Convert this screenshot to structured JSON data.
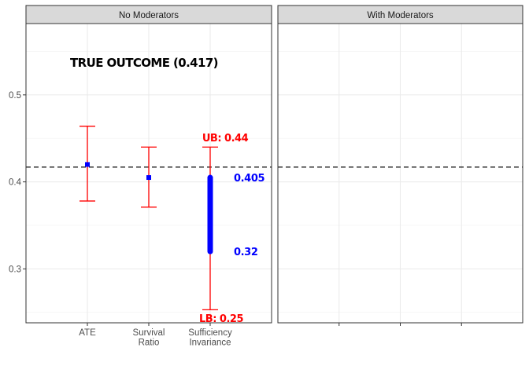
{
  "chart_data": [
    {
      "type": "errorbar",
      "panel_title": "No Moderators",
      "categories": [
        "ATE",
        "Survival Ratio",
        "Sufficiency Invariance"
      ],
      "category_label_lines": [
        [
          "ATE"
        ],
        [
          "Survival",
          "Ratio"
        ],
        [
          "Sufficiency",
          "Invariance"
        ]
      ],
      "category_label_colors": [
        "#4d4d4d",
        "#4d4d4d",
        "#ff0000"
      ],
      "point_estimates": [
        0.42,
        0.405,
        null
      ],
      "interval_lower": [
        0.378,
        0.371,
        0.253
      ],
      "interval_upper": [
        0.464,
        0.44,
        0.44
      ],
      "thick_range": {
        "category": "Sufficiency Invariance",
        "low": 0.32,
        "high": 0.405
      },
      "reference_line": {
        "value": 0.417,
        "style": "dashed"
      },
      "annotations": {
        "true_outcome": "TRUE OUTCOME (0.417)",
        "upper_bound": "UB: 0.44",
        "lower_bound": "LB: 0.25",
        "range_high": "0.405",
        "range_low": "0.32"
      },
      "y_ticks": [
        "0.3",
        "0.4",
        "0.5"
      ],
      "ylim": [
        0.238,
        0.582
      ],
      "grid": true,
      "colors": {
        "interval": "#ff0000",
        "point": "#0000ff",
        "range": "#0000ff",
        "reference": "#000000"
      }
    },
    {
      "type": "errorbar",
      "panel_title": "With Moderators",
      "categories": [],
      "reference_line": {
        "value": 0.417,
        "style": "dashed"
      },
      "ylim": [
        0.238,
        0.582
      ],
      "grid": true
    }
  ]
}
